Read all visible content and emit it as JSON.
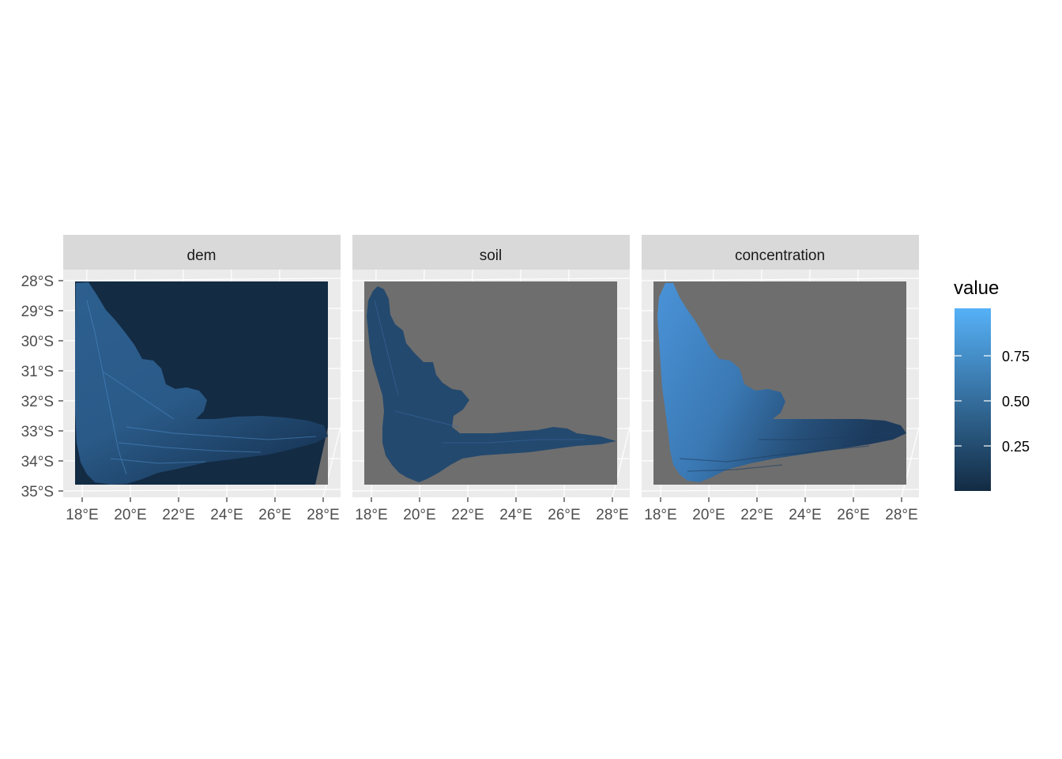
{
  "chart_data": {
    "type": "heatmap",
    "facets": [
      {
        "name": "dem"
      },
      {
        "name": "soil"
      },
      {
        "name": "concentration"
      }
    ],
    "lon_ticks": [
      "18°E",
      "20°E",
      "22°E",
      "24°E",
      "26°E",
      "28°E"
    ],
    "lon_values": [
      18,
      20,
      22,
      24,
      26,
      28
    ],
    "lat_ticks": [
      "28°S",
      "29°S",
      "30°S",
      "31°S",
      "32°S",
      "33°S",
      "34°S",
      "35°S"
    ],
    "lat_values": [
      -28,
      -29,
      -30,
      -31,
      -32,
      -33,
      -34,
      -35
    ],
    "xlim": [
      17.5,
      28.5
    ],
    "ylim": [
      -35.2,
      -27.2
    ],
    "legend": {
      "title": "value",
      "ticks": [
        "0.25",
        "0.50",
        "0.75"
      ],
      "tick_values": [
        0.25,
        0.5,
        0.75
      ],
      "range": [
        0.0,
        1.0
      ],
      "low_color": "#132B43",
      "high_color": "#56B1F7",
      "position": "right"
    },
    "panel_background": "#EBEBEB",
    "strip_background": "#D9D9D9",
    "na_color": "#6E6E6E",
    "grid": true
  }
}
